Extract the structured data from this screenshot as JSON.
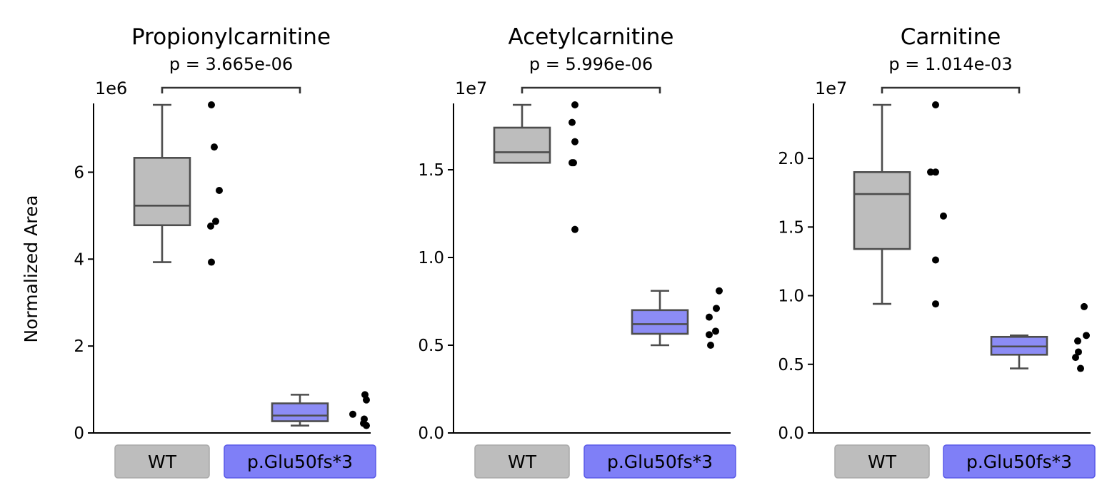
{
  "figure": {
    "ylabel": "Normalized Area",
    "group_colors": {
      "WT": "#bdbdbd",
      "p.Glu50fs*3": "#8c8cf5"
    },
    "tag_colors": {
      "WT": "#bdbdbd",
      "p.Glu50fs*3": "#7f7ff7"
    },
    "box_edge_color": "#4d4d4d"
  },
  "chart_data": [
    {
      "type": "box",
      "title": "Propionylcarnitine",
      "pvalue_label": "p = 3.665e-06",
      "scale_label": "1e6",
      "categories": [
        "WT",
        "p.Glu50fs*3"
      ],
      "ylim": [
        0,
        7.55
      ],
      "yticks": [
        0,
        2,
        4,
        6
      ],
      "ytick_labels": [
        "0",
        "2",
        "4",
        "6"
      ],
      "boxes": [
        {
          "whislo": 3.93,
          "q1": 4.78,
          "med": 5.23,
          "q3": 6.33,
          "whishi": 7.55
        },
        {
          "whislo": 0.17,
          "q1": 0.27,
          "med": 0.4,
          "q3": 0.68,
          "whishi": 0.88
        }
      ],
      "points": [
        [
          {
            "dx": 0.0,
            "y": 7.55
          },
          {
            "dx": 0.04,
            "y": 6.58
          },
          {
            "dx": 0.11,
            "y": 5.58
          },
          {
            "dx": 0.06,
            "y": 4.87
          },
          {
            "dx": -0.01,
            "y": 4.76
          },
          {
            "dx": 0.0,
            "y": 3.93
          }
        ],
        [
          {
            "dx": 0.08,
            "y": 0.88
          },
          {
            "dx": 0.1,
            "y": 0.76
          },
          {
            "dx": -0.09,
            "y": 0.43
          },
          {
            "dx": 0.07,
            "y": 0.32
          },
          {
            "dx": 0.06,
            "y": 0.22
          },
          {
            "dx": 0.1,
            "y": 0.17
          }
        ]
      ]
    },
    {
      "type": "box",
      "title": "Acetylcarnitine",
      "pvalue_label": "p = 5.996e-06",
      "scale_label": "1e7",
      "categories": [
        "WT",
        "p.Glu50fs*3"
      ],
      "ylim": [
        0,
        1.87
      ],
      "yticks": [
        0,
        0.5,
        1.0,
        1.5
      ],
      "ytick_labels": [
        "0.0",
        "0.5",
        "1.0",
        "1.5"
      ],
      "boxes": [
        {
          "whislo": 1.54,
          "q1": 1.54,
          "med": 1.6,
          "q3": 1.74,
          "whishi": 1.87
        },
        {
          "whislo": 0.5,
          "q1": 0.565,
          "med": 0.62,
          "q3": 0.7,
          "whishi": 0.81
        }
      ],
      "points": [
        [
          {
            "dx": 0.0,
            "y": 1.87
          },
          {
            "dx": -0.04,
            "y": 1.77
          },
          {
            "dx": 0.0,
            "y": 1.66
          },
          {
            "dx": -0.04,
            "y": 1.54
          },
          {
            "dx": -0.02,
            "y": 1.54
          },
          {
            "dx": 0.0,
            "y": 1.16
          }
        ],
        [
          {
            "dx": 0.0,
            "y": 0.81
          },
          {
            "dx": -0.04,
            "y": 0.71
          },
          {
            "dx": -0.14,
            "y": 0.66
          },
          {
            "dx": -0.05,
            "y": 0.58
          },
          {
            "dx": -0.14,
            "y": 0.56
          },
          {
            "dx": -0.12,
            "y": 0.5
          }
        ]
      ]
    },
    {
      "type": "box",
      "title": "Carnitine",
      "pvalue_label": "p = 1.014e-03",
      "scale_label": "1e7",
      "categories": [
        "WT",
        "p.Glu50fs*3"
      ],
      "ylim": [
        0,
        2.39
      ],
      "yticks": [
        0,
        0.5,
        1.0,
        1.5,
        2.0
      ],
      "ytick_labels": [
        "0.0",
        "0.5",
        "1.0",
        "1.5",
        "2.0"
      ],
      "boxes": [
        {
          "whislo": 0.94,
          "q1": 1.34,
          "med": 1.74,
          "q3": 1.9,
          "whishi": 2.39
        },
        {
          "whislo": 0.47,
          "q1": 0.57,
          "med": 0.63,
          "q3": 0.7,
          "whishi": 0.71
        }
      ],
      "points": [
        [
          {
            "dx": 0.0,
            "y": 2.39
          },
          {
            "dx": 0.0,
            "y": 1.9
          },
          {
            "dx": -0.07,
            "y": 1.9
          },
          {
            "dx": 0.11,
            "y": 1.58
          },
          {
            "dx": 0.0,
            "y": 1.26
          },
          {
            "dx": 0.0,
            "y": 0.94
          }
        ],
        [
          {
            "dx": 0.07,
            "y": 0.92
          },
          {
            "dx": 0.1,
            "y": 0.71
          },
          {
            "dx": -0.02,
            "y": 0.67
          },
          {
            "dx": -0.01,
            "y": 0.59
          },
          {
            "dx": -0.05,
            "y": 0.55
          },
          {
            "dx": 0.02,
            "y": 0.47
          }
        ]
      ]
    }
  ]
}
